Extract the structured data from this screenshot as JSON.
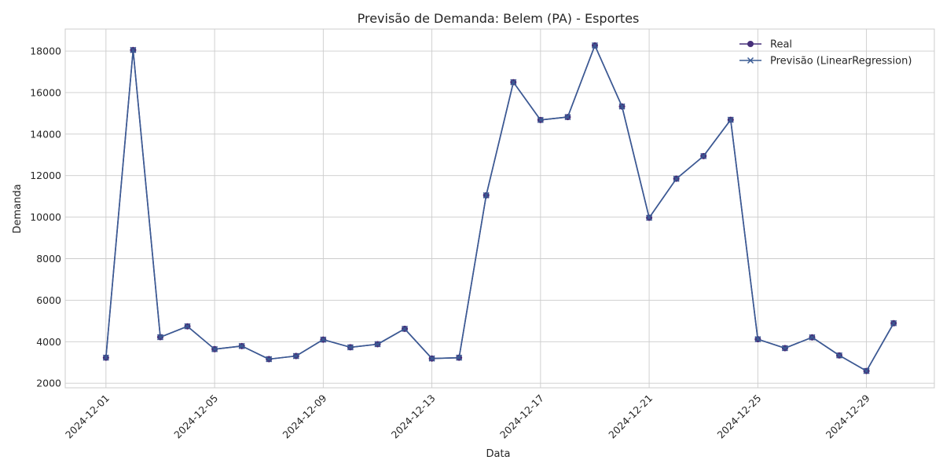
{
  "chart_data": {
    "type": "line",
    "title": "Previsão de Demanda: Belem (PA) - Esportes",
    "xlabel": "Data",
    "ylabel": "Demanda",
    "x_start": "2024-12-01",
    "x": [
      "2024-12-01",
      "2024-12-02",
      "2024-12-03",
      "2024-12-04",
      "2024-12-05",
      "2024-12-06",
      "2024-12-07",
      "2024-12-08",
      "2024-12-09",
      "2024-12-10",
      "2024-12-11",
      "2024-12-12",
      "2024-12-13",
      "2024-12-14",
      "2024-12-15",
      "2024-12-16",
      "2024-12-17",
      "2024-12-18",
      "2024-12-19",
      "2024-12-20",
      "2024-12-21",
      "2024-12-22",
      "2024-12-23",
      "2024-12-24",
      "2024-12-25",
      "2024-12-26",
      "2024-12-27",
      "2024-12-28",
      "2024-12-29",
      "2024-12-30"
    ],
    "x_ticks": [
      "2024-12-01",
      "2024-12-05",
      "2024-12-09",
      "2024-12-13",
      "2024-12-17",
      "2024-12-21",
      "2024-12-25",
      "2024-12-29"
    ],
    "y_ticks": [
      2000,
      4000,
      6000,
      8000,
      10000,
      12000,
      14000,
      16000,
      18000
    ],
    "ylim": [
      1780,
      19060
    ],
    "xlim_days": [
      -1.5,
      30.5
    ],
    "grid": true,
    "legend_position": "top-right",
    "series": [
      {
        "name": "Real",
        "marker": "circle",
        "color": "#47307a",
        "values": [
          3230,
          18050,
          4220,
          4740,
          3640,
          3790,
          3160,
          3310,
          4100,
          3730,
          3880,
          4620,
          3190,
          3230,
          11050,
          16500,
          14680,
          14820,
          18270,
          15330,
          9970,
          11850,
          12940,
          14690,
          4120,
          3690,
          4210,
          3340,
          2590,
          4890
        ]
      },
      {
        "name": "Previsão (LinearRegression)",
        "marker": "x",
        "color": "#3a5b94",
        "values": [
          3230,
          18050,
          4220,
          4740,
          3640,
          3790,
          3160,
          3310,
          4100,
          3730,
          3880,
          4620,
          3190,
          3230,
          11050,
          16500,
          14680,
          14820,
          18270,
          15330,
          9970,
          11850,
          12940,
          14690,
          4120,
          3690,
          4210,
          3340,
          2590,
          4890
        ]
      }
    ]
  }
}
